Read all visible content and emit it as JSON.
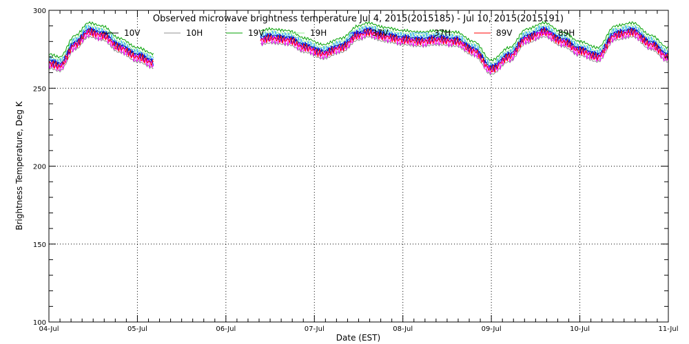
{
  "chart_data": {
    "type": "line",
    "title": "Observed microwave brightness temperature Jul  4, 2015(2015185) - Jul 10, 2015(2015191)",
    "xlabel": "Date (EST)",
    "ylabel": "Brightness Temperature, Deg K",
    "ylim": [
      100,
      300
    ],
    "xlim": [
      0,
      7
    ],
    "yticks": [
      100,
      150,
      200,
      250,
      300
    ],
    "xtick_labels": [
      "04-Jul",
      "05-Jul",
      "06-Jul",
      "07-Jul",
      "08-Jul",
      "09-Jul",
      "10-Jul",
      "11-Jul"
    ],
    "grid": true,
    "legend_position": "top",
    "gaps": [
      [
        1.19,
        2.38
      ]
    ],
    "series": [
      {
        "name": "10V",
        "color": "#000000"
      },
      {
        "name": "10H",
        "color": "#909090"
      },
      {
        "name": "19V",
        "color": "#00a000"
      },
      {
        "name": "19H",
        "color": "#90ee90"
      },
      {
        "name": "37V",
        "color": "#0000ff"
      },
      {
        "name": "37H",
        "color": "#40b0ff"
      },
      {
        "name": "89V",
        "color": "#ff0000"
      },
      {
        "name": "89H",
        "color": "#ff00ff"
      }
    ],
    "baseline": {
      "x": [
        0,
        0.12,
        0.3,
        0.45,
        0.6,
        0.8,
        1.0,
        1.19,
        2.38,
        2.5,
        2.7,
        2.9,
        3.1,
        3.3,
        3.5,
        3.6,
        3.8,
        4.0,
        4.2,
        4.4,
        4.6,
        4.8,
        5.0,
        5.2,
        5.4,
        5.6,
        5.8,
        6.0,
        6.2,
        6.4,
        6.6,
        6.8,
        7.0
      ],
      "y": [
        268,
        266,
        280,
        288,
        286,
        278,
        272,
        268,
        283,
        284,
        283,
        278,
        274,
        278,
        286,
        288,
        285,
        283,
        282,
        283,
        282,
        276,
        264,
        272,
        284,
        288,
        282,
        276,
        272,
        286,
        288,
        280,
        272
      ]
    },
    "offsets": {
      "10V": 0,
      "10H": -5,
      "19V": 4,
      "19H": 2,
      "37V": -1,
      "37H": 0.5,
      "89V": -2,
      "89H": -3
    }
  }
}
